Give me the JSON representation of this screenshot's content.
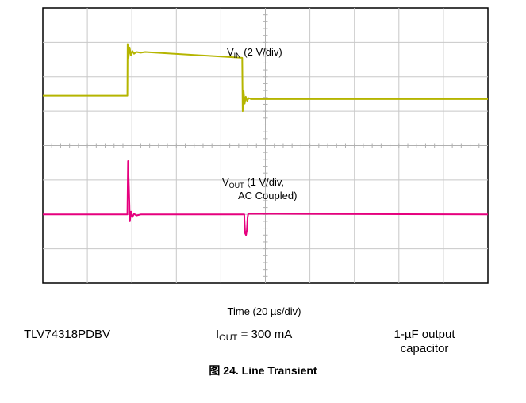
{
  "chart_data": {
    "type": "line",
    "title": "",
    "xlabel": "Time (20 µs/div)",
    "grid": true,
    "divisions": {
      "x": 10,
      "y": 8
    },
    "xlim": [
      0,
      200
    ],
    "ylim": [
      0,
      8
    ],
    "x_unit": "µs",
    "y_unit": "div",
    "series": [
      {
        "name": "VIN",
        "color": "#b5b500",
        "label_main": "V",
        "label_sub": "IN",
        "label_rest": " (2 V/div)",
        "points": [
          [
            0,
            5.45
          ],
          [
            38.0,
            5.45
          ],
          [
            38.1,
            6.95
          ],
          [
            38.5,
            6.55
          ],
          [
            39.0,
            6.85
          ],
          [
            39.6,
            6.62
          ],
          [
            40.2,
            6.75
          ],
          [
            41.0,
            6.67
          ],
          [
            42.0,
            6.72
          ],
          [
            44.0,
            6.7
          ],
          [
            46.0,
            6.72
          ],
          [
            89.6,
            6.55
          ],
          [
            89.8,
            5.0
          ],
          [
            90.2,
            5.6
          ],
          [
            90.7,
            5.22
          ],
          [
            91.2,
            5.42
          ],
          [
            91.8,
            5.3
          ],
          [
            92.5,
            5.38
          ],
          [
            93.5,
            5.35
          ],
          [
            200,
            5.35
          ]
        ]
      },
      {
        "name": "VOUT",
        "color": "#e6007e",
        "label_main": "V",
        "label_sub": "OUT",
        "label_rest": " (1 V/div,",
        "label_line2": "AC Coupled)",
        "points": [
          [
            0,
            2.0
          ],
          [
            38.0,
            2.0
          ],
          [
            38.3,
            3.55
          ],
          [
            38.7,
            2.7
          ],
          [
            39.1,
            1.8
          ],
          [
            39.6,
            2.08
          ],
          [
            40.2,
            1.92
          ],
          [
            41.0,
            2.02
          ],
          [
            42.0,
            1.97
          ],
          [
            44.0,
            2.0
          ],
          [
            90.5,
            2.0
          ],
          [
            90.6,
            1.85
          ],
          [
            90.9,
            1.45
          ],
          [
            91.3,
            1.4
          ],
          [
            91.7,
            1.55
          ],
          [
            92.0,
            1.92
          ],
          [
            92.3,
            2.02
          ],
          [
            200,
            2.0
          ]
        ]
      }
    ]
  },
  "info": {
    "device": "TLV74318PDBV",
    "iout_main": "I",
    "iout_sub": "OUT",
    "iout_rest": " = 300 mA",
    "cap_line1": "1-µF output",
    "cap_line2": "capacitor"
  },
  "caption": "图 24. Line Transient"
}
